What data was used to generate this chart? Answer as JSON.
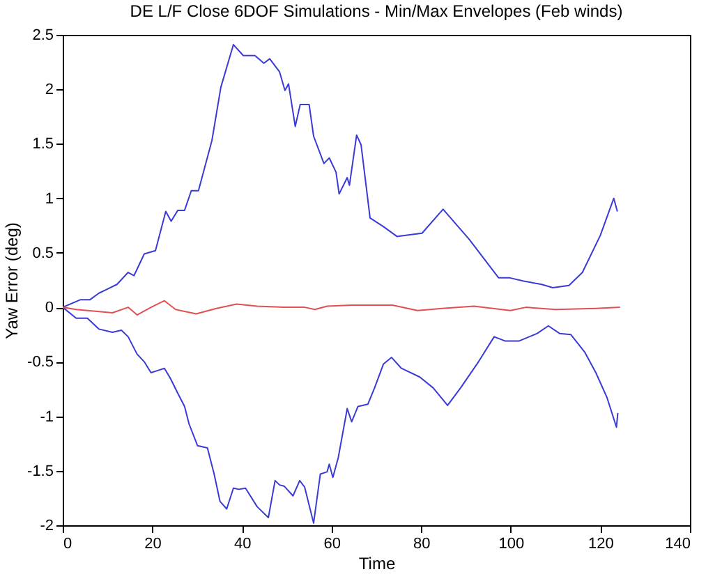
{
  "chart_data": {
    "type": "line",
    "title": "DE L/F Close 6DOF Simulations - Min/Max Envelopes (Feb winds)",
    "xlabel": "Time",
    "ylabel": "Yaw Error (deg)",
    "xlim": [
      0,
      140
    ],
    "xticks": [
      0,
      20,
      40,
      60,
      80,
      100,
      120,
      140
    ],
    "ylim": [
      -2,
      2.5
    ],
    "yticks": [
      -2,
      -1.5,
      -1,
      -0.5,
      0,
      0.5,
      1,
      1.5,
      2,
      2.5
    ],
    "grid": false,
    "line_style": "solid",
    "series": [
      {
        "color": "#3a3ad6",
        "x": [
          0,
          4.0,
          6.1,
          8.1,
          9.6,
          12.1,
          14.6,
          15.9,
          18.2,
          20.7,
          23,
          24.2,
          25.7,
          27.2,
          28.7,
          30.3,
          33.3,
          35.3,
          38.1,
          40.3,
          42.9,
          44.9,
          46.2,
          48.4,
          49.6,
          50.4,
          51.9,
          53,
          55,
          56,
          58.3,
          59.5,
          61,
          61.7,
          63.5,
          64,
          65.6,
          66.6,
          68.6,
          71.6,
          74.6,
          76.6,
          80.2,
          84.9,
          90.8,
          97.3,
          99.8,
          102.9,
          106.9,
          109.4,
          113,
          116,
          120,
          123,
          123.8
        ],
        "values": [
          0,
          0.07,
          0.07,
          0.13,
          0.16,
          0.21,
          0.32,
          0.29,
          0.49,
          0.52,
          0.88,
          0.79,
          0.89,
          0.89,
          1.07,
          1.07,
          1.53,
          2.02,
          2.41,
          2.31,
          2.31,
          2.24,
          2.28,
          2.16,
          1.99,
          2.05,
          1.66,
          1.86,
          1.86,
          1.57,
          1.32,
          1.37,
          1.24,
          1.04,
          1.19,
          1.12,
          1.58,
          1.49,
          0.82,
          0.74,
          0.65,
          0.66,
          0.68,
          0.9,
          0.62,
          0.27,
          0.27,
          0.24,
          0.21,
          0.18,
          0.2,
          0.32,
          0.66,
          1.0,
          0.88
        ]
      },
      {
        "color": "#3a3ad6",
        "x": [
          0,
          3,
          5.5,
          8.1,
          11.1,
          13.1,
          14.6,
          16.6,
          18.2,
          19.7,
          21.2,
          22.7,
          24,
          25.7,
          27.2,
          28.2,
          30.1,
          32.3,
          33.8,
          35.1,
          36.6,
          38.1,
          39.3,
          40.8,
          43.4,
          45.9,
          47.4,
          48.4,
          49.4,
          51.4,
          52.9,
          54,
          56,
          57.5,
          59,
          59.5,
          60.3,
          61.5,
          63.5,
          64.5,
          65.9,
          68.1,
          69.6,
          71.6,
          73.4,
          75.6,
          79.7,
          82.7,
          85.9,
          88.8,
          92.8,
          96.3,
          98.8,
          101.8,
          105.9,
          108.4,
          110.9,
          113.4,
          116.5,
          119,
          121.5,
          123.6,
          123.9
        ],
        "values": [
          0,
          -0.1,
          -0.1,
          -0.2,
          -0.23,
          -0.21,
          -0.27,
          -0.43,
          -0.5,
          -0.6,
          -0.58,
          -0.56,
          -0.65,
          -0.79,
          -0.91,
          -1.07,
          -1.27,
          -1.29,
          -1.53,
          -1.78,
          -1.85,
          -1.66,
          -1.67,
          -1.66,
          -1.83,
          -1.93,
          -1.59,
          -1.63,
          -1.64,
          -1.73,
          -1.59,
          -1.65,
          -1.98,
          -1.53,
          -1.51,
          -1.44,
          -1.56,
          -1.38,
          -0.93,
          -1.05,
          -0.91,
          -0.89,
          -0.74,
          -0.52,
          -0.46,
          -0.56,
          -0.64,
          -0.74,
          -0.9,
          -0.74,
          -0.5,
          -0.27,
          -0.31,
          -0.31,
          -0.24,
          -0.17,
          -0.24,
          -0.25,
          -0.41,
          -0.6,
          -0.83,
          -1.1,
          -0.97
        ]
      },
      {
        "color": "#e05050",
        "x": [
          0,
          3,
          11.1,
          14.6,
          16.6,
          19.7,
          22.7,
          25.2,
          29.8,
          34.3,
          38.8,
          43.4,
          49.4,
          54,
          56.3,
          59,
          64.5,
          73.6,
          79.2,
          84.7,
          91.8,
          99.9,
          103.4,
          110,
          119,
          124.4
        ],
        "values": [
          0,
          -0.02,
          -0.05,
          0,
          -0.07,
          0,
          0.06,
          -0.02,
          -0.06,
          -0.01,
          0.03,
          0.01,
          0,
          0,
          -0.02,
          0.01,
          0.02,
          0.02,
          -0.03,
          -0.01,
          0.01,
          -0.03,
          0,
          -0.02,
          -0.01,
          0
        ]
      }
    ]
  }
}
